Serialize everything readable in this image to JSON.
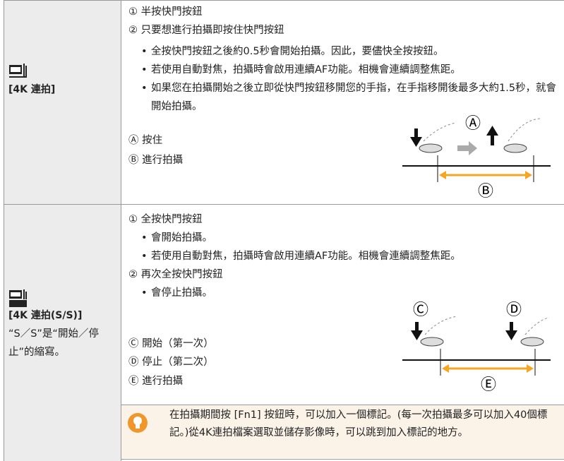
{
  "rows": [
    {
      "label": "[4K 連拍]",
      "steps": [
        {
          "text": "① 半按快門按鈕",
          "bullets": []
        },
        {
          "text": "② 只要想進行拍攝即按住快門按鈕",
          "bullets": [
            "全按快門按鈕之後約0.5秒會開始拍攝。因此，要儘快全按按鈕。",
            "若使用自動對焦，拍攝時會啟用連續AF功能。相機會連續調整焦距。",
            "如果您在拍攝開始之後立即從快門按鈕移開您的手指，在手指移開後最多大約1.5秒，就會開始拍攝。"
          ]
        }
      ],
      "legend": [
        "Ⓐ 按住",
        "Ⓑ 進行拍攝"
      ],
      "diagram_labels": [
        "Ⓐ",
        "Ⓑ"
      ]
    },
    {
      "label": "[4K 連拍(S/S)]",
      "description": "“S／S”是“開始／停止”的縮寫。",
      "steps": [
        {
          "text": "① 全按快門按鈕",
          "bullets": [
            "會開始拍攝。",
            "若使用自動對焦，拍攝時會啟用連續AF功能。相機會連續調整焦距。"
          ]
        },
        {
          "text": "② 再次全按快門按鈕",
          "bullets": [
            "會停止拍攝。"
          ]
        }
      ],
      "legend": [
        "Ⓒ 開始（第一次）",
        "Ⓓ 停止（第二次）",
        "Ⓔ 進行拍攝"
      ],
      "diagram_labels": [
        "Ⓒ",
        "Ⓓ",
        "Ⓔ"
      ],
      "note": "在拍攝期間按 [Fn1] 按鈕時，可以加入一個標記。(每一次拍攝最多可以加入40個標記。)從4K連拍檔案選取並儲存影像時，可以跳到加入標記的地方。"
    }
  ]
}
